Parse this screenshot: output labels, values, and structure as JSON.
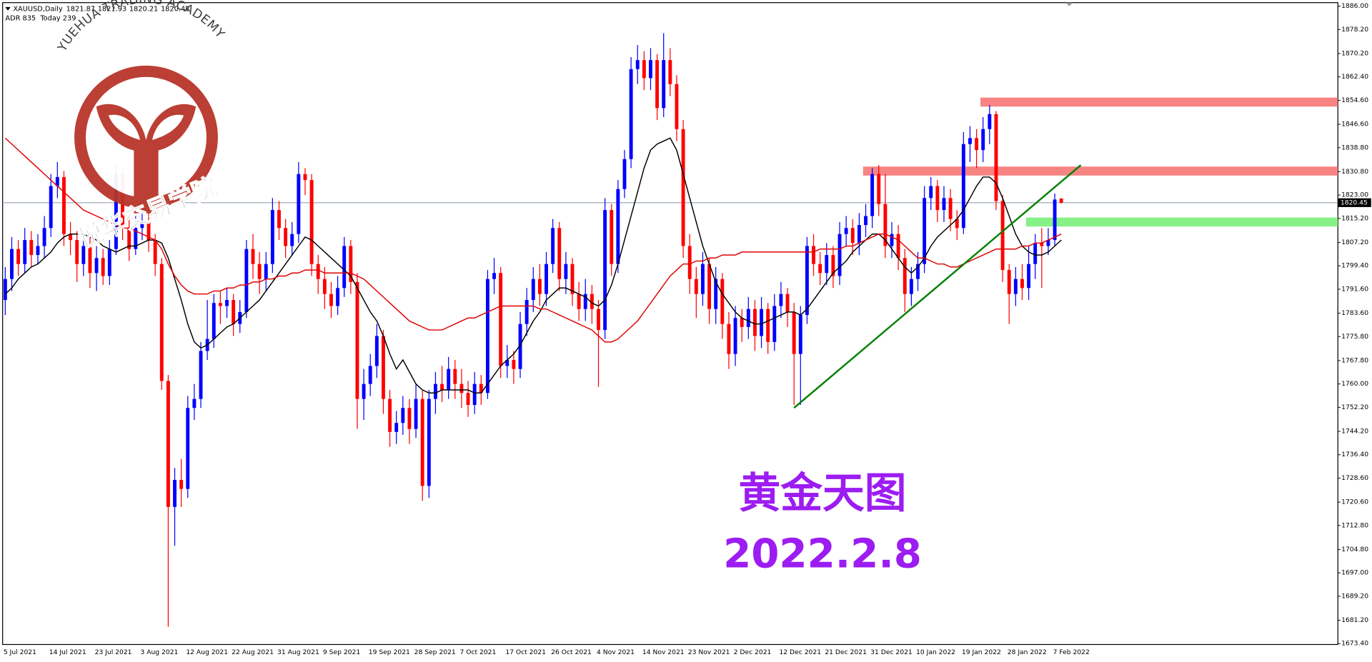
{
  "chart_data": {
    "type": "candlestick",
    "symbol": "XAUUSD,Daily",
    "info": "ADR 835  Today 239",
    "watermark_en": "YUEHUA TRADING ACADEMY",
    "watermark_cn": "悦华交易学院",
    "title": "黄金天图",
    "subtitle": "2022.2.8",
    "up_color": "#0000ff",
    "down_color": "#ff0000",
    "categories": [
      "5 Jul 2021",
      null,
      null,
      null,
      null,
      null,
      null,
      "14 Jul 2021",
      null,
      null,
      null,
      null,
      null,
      null,
      "23 Jul 2021",
      null,
      null,
      null,
      null,
      null,
      null,
      "3 Aug 2021",
      null,
      null,
      null,
      null,
      null,
      null,
      "12 Aug 2021",
      null,
      null,
      null,
      null,
      null,
      null,
      "22 Aug 2021",
      null,
      null,
      null,
      null,
      null,
      null,
      "31 Aug 2021",
      null,
      null,
      null,
      null,
      null,
      null,
      "9 Sep 2021",
      null,
      null,
      null,
      null,
      null,
      null,
      "19 Sep 2021",
      null,
      null,
      null,
      null,
      null,
      null,
      "28 Sep 2021",
      null,
      null,
      null,
      null,
      null,
      null,
      "7 Oct 2021",
      null,
      null,
      null,
      null,
      null,
      null,
      "17 Oct 2021",
      null,
      null,
      null,
      null,
      null,
      null,
      "26 Oct 2021",
      null,
      null,
      null,
      null,
      null,
      null,
      "4 Nov 2021",
      null,
      null,
      null,
      null,
      null,
      null,
      "14 Nov 2021",
      null,
      null,
      null,
      null,
      null,
      null,
      "23 Nov 2021",
      null,
      null,
      null,
      null,
      null,
      null,
      "2 Dec 2021",
      null,
      null,
      null,
      null,
      null,
      null,
      "12 Dec 2021",
      null,
      null,
      null,
      null,
      null,
      null,
      "21 Dec 2021",
      null,
      null,
      null,
      null,
      null,
      null,
      "31 Dec 2021",
      null,
      null,
      null,
      null,
      null,
      null,
      "10 Jan 2022",
      null,
      null,
      null,
      null,
      null,
      null,
      "19 Jan 2022",
      null,
      null,
      null,
      null,
      null,
      null,
      "28 Jan 2022",
      null,
      null,
      null,
      null,
      null,
      null,
      "7 Feb 2022",
      null
    ],
    "open": [
      1788,
      1795,
      1805,
      1800,
      1808,
      1803,
      1806,
      1812,
      1826,
      1829,
      1810,
      1808,
      1800,
      1806,
      1797,
      1802,
      1796,
      1805,
      1830,
      1812,
      1805,
      1812,
      1814,
      1808,
      1800,
      1761,
      1719,
      1728,
      1725,
      1752,
      1755,
      1771,
      1775,
      1787,
      1786,
      1788,
      1780,
      1784,
      1805,
      1800,
      1795,
      1800,
      1818,
      1812,
      1806,
      1810,
      1830,
      1828,
      1800,
      1795,
      1790,
      1786,
      1792,
      1806,
      1794,
      1755,
      1760,
      1766,
      1776,
      1755,
      1744,
      1747,
      1752,
      1745,
      1755,
      1726,
      1755,
      1760,
      1758,
      1765,
      1760,
      1757,
      1753,
      1760,
      1757,
      1795,
      1797,
      1766,
      1768,
      1765,
      1780,
      1788,
      1795,
      1790,
      1800,
      1812,
      1795,
      1800,
      1790,
      1785,
      1790,
      1785,
      1778,
      1818,
      1800,
      1825,
      1835,
      1865,
      1868,
      1862,
      1868,
      1852,
      1868,
      1860,
      1845,
      1806,
      1795,
      1790,
      1800,
      1785,
      1795,
      1780,
      1770,
      1782,
      1779,
      1785,
      1776,
      1785,
      1774,
      1786,
      1790,
      1784,
      1770,
      1783,
      1806,
      1800,
      1797,
      1803,
      1796,
      1810,
      1812,
      1807,
      1813,
      1816,
      1830,
      1820,
      1806,
      1810,
      1802,
      1790,
      1795,
      1800,
      1822,
      1826,
      1818,
      1822,
      1815,
      1812,
      1840,
      1842,
      1838,
      1845,
      1850,
      1821,
      1798,
      1790,
      1795,
      1792,
      1800,
      1807,
      1806,
      1808,
      1821.87
    ],
    "high": [
      1799,
      1809,
      1808,
      1812,
      1811,
      1810,
      1816,
      1830,
      1834,
      1831,
      1814,
      1811,
      1810,
      1809,
      1806,
      1805,
      1808,
      1833,
      1832,
      1815,
      1816,
      1818,
      1817,
      1810,
      1802,
      1763,
      1732,
      1735,
      1756,
      1760,
      1774,
      1788,
      1790,
      1791,
      1792,
      1790,
      1788,
      1808,
      1810,
      1804,
      1804,
      1822,
      1821,
      1815,
      1814,
      1834,
      1832,
      1830,
      1803,
      1799,
      1794,
      1796,
      1809,
      1808,
      1797,
      1765,
      1770,
      1780,
      1778,
      1758,
      1751,
      1756,
      1755,
      1760,
      1758,
      1758,
      1764,
      1766,
      1769,
      1768,
      1765,
      1761,
      1764,
      1763,
      1798,
      1802,
      1799,
      1773,
      1771,
      1784,
      1792,
      1799,
      1800,
      1804,
      1815,
      1814,
      1804,
      1802,
      1794,
      1795,
      1793,
      1788,
      1822,
      1820,
      1828,
      1838,
      1869,
      1873,
      1871,
      1872,
      1870,
      1877,
      1872,
      1863,
      1848,
      1810,
      1799,
      1804,
      1802,
      1799,
      1797,
      1784,
      1786,
      1785,
      1789,
      1788,
      1789,
      1787,
      1790,
      1794,
      1792,
      1787,
      1786,
      1809,
      1810,
      1804,
      1807,
      1806,
      1814,
      1816,
      1815,
      1817,
      1820,
      1832,
      1833,
      1830,
      1814,
      1813,
      1805,
      1799,
      1804,
      1826,
      1829,
      1828,
      1826,
      1825,
      1818,
      1844,
      1846,
      1845,
      1849,
      1853,
      1851,
      1823,
      1800,
      1799,
      1800,
      1806,
      1810,
      1812,
      1812,
      1823.5,
      1821.93
    ],
    "low": [
      1783,
      1791,
      1796,
      1797,
      1799,
      1800,
      1802,
      1809,
      1822,
      1806,
      1803,
      1794,
      1796,
      1792,
      1791,
      1793,
      1793,
      1803,
      1808,
      1801,
      1803,
      1808,
      1804,
      1796,
      1758,
      1679,
      1706,
      1719,
      1722,
      1748,
      1752,
      1768,
      1772,
      1780,
      1782,
      1776,
      1777,
      1782,
      1795,
      1790,
      1791,
      1797,
      1808,
      1802,
      1803,
      1807,
      1823,
      1796,
      1790,
      1785,
      1782,
      1783,
      1789,
      1790,
      1745,
      1748,
      1756,
      1762,
      1750,
      1739,
      1740,
      1743,
      1740,
      1742,
      1721,
      1722,
      1750,
      1754,
      1755,
      1755,
      1752,
      1749,
      1750,
      1753,
      1755,
      1790,
      1762,
      1762,
      1760,
      1762,
      1776,
      1784,
      1786,
      1786,
      1797,
      1791,
      1790,
      1786,
      1781,
      1781,
      1780,
      1759,
      1775,
      1796,
      1797,
      1822,
      1832,
      1860,
      1858,
      1858,
      1848,
      1849,
      1856,
      1841,
      1802,
      1790,
      1782,
      1786,
      1780,
      1780,
      1775,
      1765,
      1766,
      1774,
      1775,
      1771,
      1772,
      1770,
      1771,
      1782,
      1779,
      1753,
      1753,
      1780,
      1796,
      1793,
      1793,
      1792,
      1793,
      1806,
      1803,
      1803,
      1809,
      1812,
      1816,
      1802,
      1802,
      1798,
      1784,
      1786,
      1791,
      1797,
      1818,
      1814,
      1814,
      1811,
      1808,
      1810,
      1834,
      1832,
      1834,
      1840,
      1818,
      1794,
      1780,
      1786,
      1788,
      1788,
      1795,
      1792,
      1803,
      1806,
      1820.21
    ],
    "close": [
      1795,
      1805,
      1800,
      1808,
      1803,
      1806,
      1812,
      1826,
      1829,
      1810,
      1808,
      1800,
      1806,
      1797,
      1802,
      1796,
      1805,
      1830,
      1812,
      1805,
      1812,
      1814,
      1808,
      1800,
      1761,
      1719,
      1728,
      1725,
      1752,
      1755,
      1771,
      1775,
      1787,
      1786,
      1788,
      1780,
      1784,
      1805,
      1800,
      1795,
      1800,
      1818,
      1812,
      1806,
      1810,
      1830,
      1828,
      1800,
      1795,
      1790,
      1786,
      1792,
      1806,
      1794,
      1755,
      1760,
      1766,
      1776,
      1755,
      1744,
      1747,
      1752,
      1745,
      1755,
      1726,
      1755,
      1760,
      1758,
      1765,
      1760,
      1757,
      1753,
      1760,
      1757,
      1795,
      1797,
      1766,
      1768,
      1765,
      1780,
      1788,
      1795,
      1790,
      1800,
      1812,
      1795,
      1800,
      1790,
      1785,
      1790,
      1785,
      1778,
      1818,
      1800,
      1825,
      1835,
      1865,
      1868,
      1862,
      1868,
      1852,
      1868,
      1860,
      1845,
      1806,
      1795,
      1790,
      1800,
      1785,
      1795,
      1780,
      1770,
      1782,
      1779,
      1785,
      1776,
      1785,
      1774,
      1786,
      1790,
      1784,
      1770,
      1783,
      1806,
      1800,
      1797,
      1803,
      1796,
      1810,
      1812,
      1807,
      1813,
      1816,
      1830,
      1820,
      1806,
      1810,
      1802,
      1790,
      1795,
      1800,
      1822,
      1826,
      1818,
      1822,
      1815,
      1812,
      1840,
      1842,
      1838,
      1845,
      1850,
      1821,
      1798,
      1790,
      1795,
      1792,
      1800,
      1807,
      1806,
      1808,
      1821.5,
      1820.45
    ],
    "lines": [
      {
        "color": "#000000",
        "values": [
          1790,
          1792,
          1795,
          1797,
          1799,
          1800,
          1802,
          1804,
          1807,
          1809,
          1810,
          1810,
          1810,
          1809,
          1808,
          1806,
          1805,
          1804,
          1805,
          1806,
          1806,
          1807,
          1808,
          1808,
          1807,
          1802,
          1795,
          1788,
          1780,
          1774,
          1772,
          1773,
          1775,
          1777,
          1779,
          1780,
          1782,
          1784,
          1786,
          1788,
          1791,
          1794,
          1797,
          1800,
          1803,
          1806,
          1809,
          1808,
          1806,
          1804,
          1802,
          1800,
          1798,
          1796,
          1792,
          1788,
          1784,
          1781,
          1776,
          1770,
          1765,
          1768,
          1764,
          1760,
          1758,
          1757,
          1757,
          1758,
          1758,
          1758,
          1758,
          1758,
          1757,
          1757,
          1760,
          1763,
          1766,
          1768,
          1770,
          1773,
          1777,
          1781,
          1784,
          1788,
          1790,
          1792,
          1792,
          1791,
          1790,
          1789,
          1787,
          1786,
          1788,
          1793,
          1800,
          1808,
          1816,
          1824,
          1832,
          1838,
          1840,
          1841,
          1842,
          1838,
          1830,
          1822,
          1814,
          1806,
          1800,
          1794,
          1790,
          1787,
          1784,
          1782,
          1781,
          1780,
          1780,
          1781,
          1782,
          1783,
          1784,
          1784,
          1783,
          1785,
          1788,
          1791,
          1794,
          1797,
          1799,
          1801,
          1804,
          1806,
          1808,
          1810,
          1810,
          1808,
          1805,
          1802,
          1799,
          1797,
          1799,
          1802,
          1806,
          1809,
          1811,
          1813,
          1815,
          1818,
          1822,
          1826,
          1829,
          1829,
          1827,
          1822,
          1816,
          1810,
          1806,
          1804,
          1803,
          1803,
          1804,
          1806,
          1808
        ]
      },
      {
        "color": "#e00000",
        "values": [
          1842,
          1840,
          1838,
          1836,
          1834,
          1832,
          1830,
          1828,
          1826,
          1824,
          1822,
          1820,
          1818,
          1817,
          1816,
          1815,
          1814,
          1813,
          1812,
          1812,
          1811,
          1810,
          1809,
          1808,
          1805,
          1800,
          1796,
          1793,
          1791,
          1790,
          1790,
          1790,
          1791,
          1791,
          1792,
          1792,
          1793,
          1793,
          1794,
          1794,
          1795,
          1795,
          1796,
          1796,
          1797,
          1797,
          1798,
          1798,
          1798,
          1797,
          1797,
          1797,
          1797,
          1797,
          1796,
          1795,
          1793,
          1791,
          1789,
          1787,
          1785,
          1783,
          1781,
          1780,
          1779,
          1778,
          1778,
          1778,
          1779,
          1780,
          1781,
          1782,
          1782,
          1783,
          1784,
          1785,
          1786,
          1786,
          1786,
          1786,
          1786,
          1786,
          1785,
          1785,
          1784,
          1783,
          1782,
          1781,
          1780,
          1779,
          1778,
          1776,
          1774,
          1774,
          1775,
          1777,
          1779,
          1781,
          1784,
          1787,
          1790,
          1793,
          1796,
          1798,
          1800,
          1800,
          1801,
          1801,
          1802,
          1802,
          1803,
          1803,
          1803,
          1804,
          1804,
          1804,
          1804,
          1804,
          1804,
          1804,
          1804,
          1804,
          1804,
          1804,
          1804,
          1805,
          1805,
          1805,
          1805,
          1806,
          1806,
          1807,
          1808,
          1809,
          1810,
          1810,
          1809,
          1808,
          1806,
          1804,
          1802,
          1802,
          1801,
          1800,
          1800,
          1799,
          1799,
          1800,
          1801,
          1802,
          1803,
          1804,
          1805,
          1805,
          1805,
          1805,
          1806,
          1806,
          1807,
          1807,
          1808,
          1809,
          1810
        ]
      }
    ],
    "zones": [
      {
        "from": 150,
        "low": 1852.5,
        "high": 1855.5,
        "color": "#f87c7c"
      },
      {
        "from": 132,
        "low": 1829.5,
        "high": 1832.5,
        "color": "#f87c7c"
      },
      {
        "from": 157,
        "low": 1812.5,
        "high": 1815.5,
        "color": "#80f080"
      }
    ],
    "trendline": {
      "x": [
        121,
        165
      ],
      "y": [
        1752,
        1833
      ],
      "color": "#008000"
    },
    "last_price": 1820.45,
    "ylim": [
      1673.4,
      1886
    ],
    "yticks": [
      {
        "value": 1886,
        "label": "1886.00"
      },
      {
        "value": 1878.2,
        "label": "1878.20"
      },
      {
        "value": 1870.2,
        "label": "1870.20"
      },
      {
        "value": 1862.4,
        "label": "1862.40"
      },
      {
        "value": 1854.6,
        "label": "1854.60"
      },
      {
        "value": 1846.6,
        "label": "1846.60"
      },
      {
        "value": 1838.8,
        "label": "1838.80"
      },
      {
        "value": 1830.8,
        "label": "1830.80"
      },
      {
        "value": 1823,
        "label": "1823.00"
      },
      {
        "value": 1815.2,
        "label": "1815.20"
      },
      {
        "value": 1807.2,
        "label": "1807.20"
      },
      {
        "value": 1799.4,
        "label": "1799.40"
      },
      {
        "value": 1791.6,
        "label": "1791.60"
      },
      {
        "value": 1783.6,
        "label": "1783.60"
      },
      {
        "value": 1775.8,
        "label": "1775.80"
      },
      {
        "value": 1767.8,
        "label": "1767.80"
      },
      {
        "value": 1760,
        "label": "1760.00"
      },
      {
        "value": 1752.2,
        "label": "1752.20"
      },
      {
        "value": 1744.2,
        "label": "1744.20"
      },
      {
        "value": 1736.4,
        "label": "1736.40"
      },
      {
        "value": 1728.6,
        "label": "1728.60"
      },
      {
        "value": 1720.6,
        "label": "1720.60"
      },
      {
        "value": 1712.8,
        "label": "1712.80"
      },
      {
        "value": 1704.8,
        "label": "1704.80"
      },
      {
        "value": 1697,
        "label": "1697.00"
      },
      {
        "value": 1689.2,
        "label": "1689.20"
      },
      {
        "value": 1681.2,
        "label": "1681.20"
      },
      {
        "value": 1673.4,
        "label": "1673.40"
      }
    ]
  }
}
